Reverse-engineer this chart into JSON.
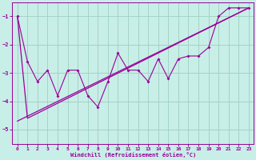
{
  "xlabel": "Windchill (Refroidissement éolien,°C)",
  "xlim": [
    -0.5,
    23.5
  ],
  "ylim": [
    -5.5,
    -0.5
  ],
  "yticks": [
    -5,
    -4,
    -3,
    -2,
    -1
  ],
  "xticks": [
    0,
    1,
    2,
    3,
    4,
    5,
    6,
    7,
    8,
    9,
    10,
    11,
    12,
    13,
    14,
    15,
    16,
    17,
    18,
    19,
    20,
    21,
    22,
    23
  ],
  "bg_color": "#c8eee8",
  "line_color": "#990099",
  "grid_color": "#9ecfbf",
  "zigzag_x": [
    0,
    1,
    2,
    3,
    4,
    5,
    6,
    7,
    8,
    9,
    10,
    11,
    12,
    13,
    14,
    15,
    16,
    17,
    18,
    19,
    20,
    21,
    22,
    23
  ],
  "zigzag_y": [
    -1.0,
    -2.6,
    -3.3,
    -2.9,
    -3.8,
    -2.9,
    -2.9,
    -3.8,
    -4.2,
    -3.3,
    -2.3,
    -2.9,
    -2.9,
    -3.3,
    -2.5,
    -3.2,
    -2.5,
    -2.4,
    -2.4,
    -2.1,
    -1.0,
    -0.7,
    -0.7,
    -0.7
  ],
  "trend1_x": [
    0,
    1,
    23
  ],
  "trend1_y": [
    -1.0,
    -4.6,
    -0.7
  ],
  "trend2_x": [
    0,
    23
  ],
  "trend2_y": [
    -4.7,
    -0.7
  ]
}
